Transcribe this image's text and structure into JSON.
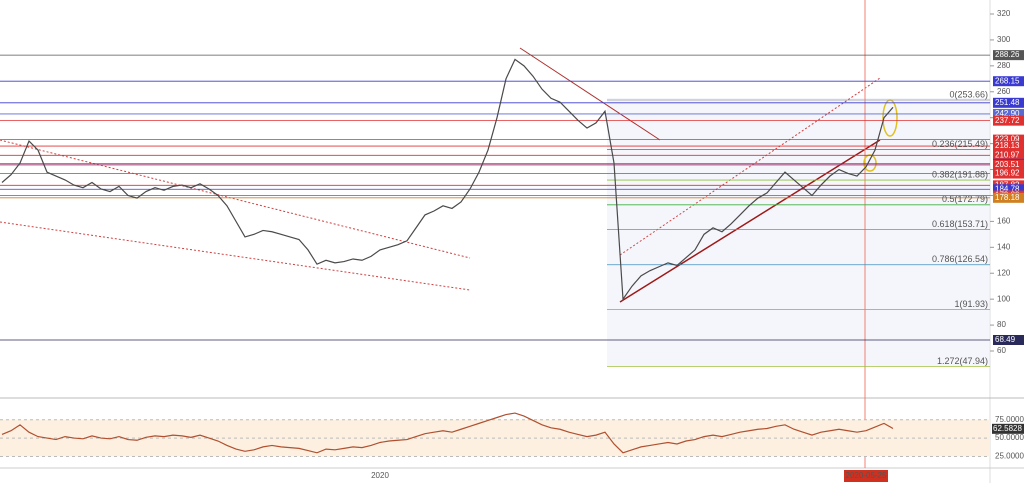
{
  "chart_data": {
    "type": "line",
    "categories": [
      null,
      null,
      null,
      null,
      null,
      null,
      null,
      null,
      null,
      null,
      null,
      null,
      null,
      null,
      null,
      null,
      null,
      null,
      null,
      null,
      null,
      null,
      null,
      null,
      null,
      null,
      null,
      null,
      null,
      null,
      null,
      null,
      null,
      null,
      null,
      null,
      null,
      null,
      null,
      null,
      null,
      null,
      "2020",
      null,
      null,
      null,
      null,
      null,
      null,
      null,
      null,
      null,
      null,
      null,
      null,
      null,
      null,
      null,
      null,
      null,
      null,
      null,
      null,
      null,
      null,
      null,
      null,
      null,
      null,
      null,
      null,
      null,
      null,
      null,
      null,
      null,
      null,
      null,
      null,
      null,
      null,
      null,
      null,
      null,
      null,
      null,
      null,
      null,
      null,
      null,
      null,
      null,
      null,
      null,
      null,
      null,
      "2020-05-25",
      null,
      null,
      null
    ],
    "series": [
      {
        "name": "Price",
        "color": "#4a4a4a",
        "values": [
          190,
          196,
          205,
          222,
          215,
          198,
          195,
          192,
          188,
          186,
          190,
          185,
          183,
          187,
          180,
          178,
          183,
          186,
          184,
          187,
          188,
          186,
          189,
          185,
          180,
          172,
          160,
          148,
          150,
          153,
          152,
          150,
          148,
          146,
          138,
          127,
          130,
          128,
          129,
          131,
          130,
          133,
          138,
          140,
          142,
          145,
          155,
          165,
          168,
          172,
          170,
          175,
          185,
          198,
          215,
          240,
          270,
          285,
          280,
          272,
          262,
          255,
          252,
          245,
          238,
          232,
          236,
          245,
          205,
          100,
          110,
          118,
          122,
          125,
          128,
          126,
          132,
          138,
          150,
          155,
          152,
          158,
          165,
          172,
          178,
          182,
          190,
          198,
          192,
          186,
          180,
          188,
          195,
          200,
          197,
          195,
          202,
          215,
          240,
          248
        ]
      }
    ],
    "ylim": [
      60,
      320
    ],
    "yticks": [
      60,
      80,
      100,
      120,
      140,
      160,
      180,
      200,
      220,
      240,
      260,
      280,
      300,
      320
    ],
    "levels": [
      {
        "value": 288.26,
        "label": "288.26",
        "color": "#555555"
      },
      {
        "value": 268.15,
        "label": "268.15",
        "color": "#3a3ad0"
      },
      {
        "value": 251.48,
        "label": "251.48",
        "color": "#3a3ad0"
      },
      {
        "value": 242.9,
        "label": "242.90",
        "color": "#5a6ad0"
      },
      {
        "value": 237.72,
        "label": "237.72",
        "color": "#e03030"
      },
      {
        "value": 223.09,
        "label": "223.09",
        "color": "#e03030"
      },
      {
        "value": 218.13,
        "label": "218.13",
        "color": "#e03030"
      },
      {
        "value": 210.97,
        "label": "210.97",
        "color": "#e03030"
      },
      {
        "value": 204.42,
        "label": "204.42",
        "color": "#3a3ad0"
      },
      {
        "value": 203.51,
        "label": "203.51",
        "color": "#e03030"
      },
      {
        "value": 196.92,
        "label": "196.92",
        "color": "#e03030"
      },
      {
        "value": 187.82,
        "label": "187.82",
        "color": "#e03030"
      },
      {
        "value": 184.78,
        "label": "184.78",
        "color": "#3a3ad0"
      },
      {
        "value": 179.89,
        "label": "179.89",
        "color": "#e03030"
      },
      {
        "value": 178.18,
        "label": "178.18",
        "color": "#d08020"
      },
      {
        "value": 68.49,
        "label": "68.49",
        "color": "#2a2a5a"
      }
    ],
    "fib_levels": [
      {
        "value": 253.66,
        "label": "0(253.66)",
        "color": "#999999"
      },
      {
        "value": 215.49,
        "label": "0.236(215.49)",
        "color": "#e05050"
      },
      {
        "value": 191.88,
        "label": "0.382(191.88)",
        "color": "#90c040"
      },
      {
        "value": 172.79,
        "label": "0.5(172.79)",
        "color": "#40b040"
      },
      {
        "value": 153.71,
        "label": "0.618(153.71)",
        "color": "#30b090"
      },
      {
        "value": 126.54,
        "label": "0.786(126.54)",
        "color": "#4090c0"
      },
      {
        "value": 91.93,
        "label": "1(91.93)",
        "color": "#999999"
      },
      {
        "value": 47.94,
        "label": "1.272(47.94)",
        "color": "#a0c040"
      }
    ],
    "rsi": {
      "values": [
        55,
        60,
        68,
        58,
        52,
        50,
        48,
        52,
        50,
        49,
        53,
        50,
        49,
        52,
        48,
        47,
        51,
        53,
        52,
        54,
        53,
        51,
        54,
        50,
        46,
        40,
        35,
        32,
        34,
        38,
        40,
        38,
        37,
        36,
        33,
        30,
        35,
        34,
        36,
        38,
        37,
        40,
        44,
        46,
        47,
        48,
        52,
        56,
        58,
        60,
        58,
        62,
        66,
        70,
        74,
        78,
        82,
        84,
        80,
        74,
        68,
        64,
        62,
        58,
        55,
        52,
        54,
        58,
        42,
        30,
        34,
        38,
        40,
        42,
        44,
        42,
        46,
        48,
        52,
        54,
        52,
        55,
        58,
        60,
        62,
        63,
        66,
        68,
        62,
        58,
        54,
        58,
        60,
        62,
        60,
        58,
        60,
        65,
        70,
        63
      ],
      "color": "#b05030",
      "ylim": [
        12,
        95
      ],
      "yticks": [
        {
          "value": 25,
          "label": "25.0000"
        },
        {
          "value": 50,
          "label": "50.0000"
        },
        {
          "value": 75,
          "label": "75.0000"
        }
      ],
      "last": {
        "value": 62.5828,
        "label": "62.5828"
      }
    }
  }
}
